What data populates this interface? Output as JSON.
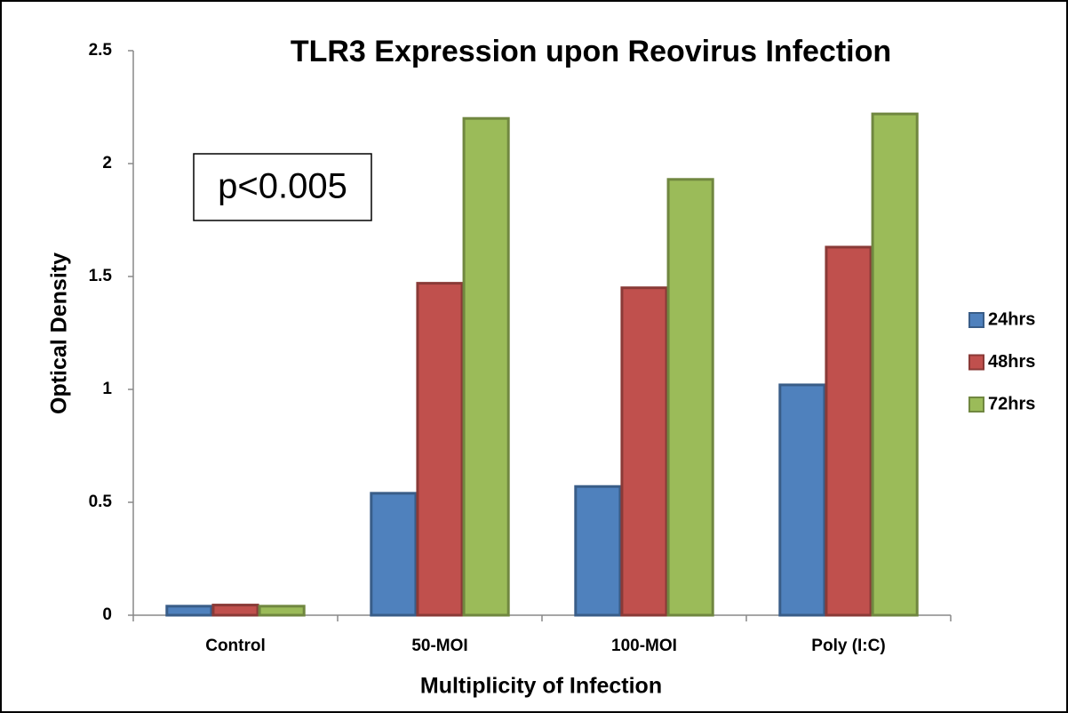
{
  "chart_data": {
    "type": "bar",
    "title": "TLR3 Expression upon Reovirus Infection",
    "x_label": "Multiplicity of Infection",
    "y_label": "Optical Density",
    "annotation": "p<0.005",
    "categories": [
      "Control",
      "50-MOI",
      "100-MOI",
      "Poly (I:C)"
    ],
    "series": [
      {
        "name": "24hrs",
        "color": "#4f81bd",
        "values": [
          0.04,
          0.54,
          0.57,
          1.02
        ]
      },
      {
        "name": "48hrs",
        "color": "#c0504d",
        "values": [
          0.045,
          1.47,
          1.45,
          1.63
        ]
      },
      {
        "name": "72hrs",
        "color": "#9bbb59",
        "values": [
          0.04,
          2.2,
          1.93,
          2.22
        ]
      }
    ],
    "ylim": [
      0,
      2.5
    ],
    "yticks": [
      0,
      0.5,
      1,
      1.5,
      2,
      2.5
    ],
    "grid": false,
    "legend": "right"
  }
}
